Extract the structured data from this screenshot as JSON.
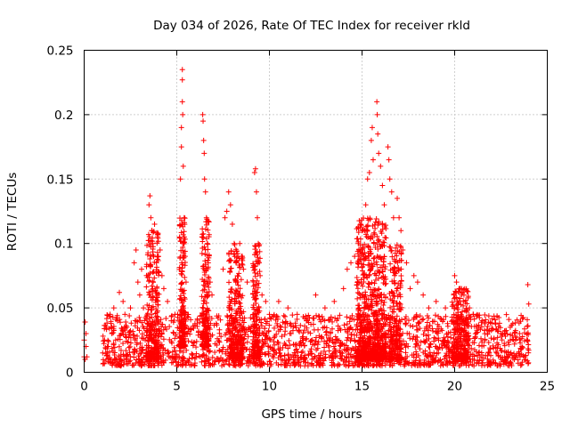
{
  "chart_data": {
    "type": "scatter",
    "title": "Day 034 of 2026, Rate Of TEC Index for receiver rkld",
    "xlabel": "GPS time / hours",
    "ylabel": "ROTI / TECUs",
    "xlim": [
      0,
      25
    ],
    "ylim": [
      0,
      0.25
    ],
    "x_ticks": [
      0,
      5,
      10,
      15,
      20,
      25
    ],
    "y_ticks": [
      0,
      0.05,
      0.1,
      0.15,
      0.2,
      0.25
    ],
    "x_tick_labels": [
      "0",
      "5",
      "10",
      "15",
      "20",
      "25"
    ],
    "y_tick_labels": [
      "0",
      "0.05",
      "0.1",
      "0.15",
      "0.2",
      "0.25"
    ],
    "grid": true,
    "marker": "+",
    "marker_color": "#ff0000",
    "series": [
      {
        "points": [
          [
            0.0,
            0.012
          ],
          [
            0.0,
            0.025
          ],
          [
            0.05,
            0.039
          ],
          [
            0.05,
            0.01
          ],
          [
            0.1,
            0.02
          ],
          [
            0.1,
            0.03
          ],
          [
            0.15,
            0.012
          ],
          [
            1.0,
            0.015
          ],
          [
            1.1,
            0.025
          ],
          [
            1.2,
            0.035
          ],
          [
            1.3,
            0.02
          ],
          [
            1.4,
            0.045
          ],
          [
            1.5,
            0.03
          ],
          [
            1.6,
            0.05
          ],
          [
            1.7,
            0.025
          ],
          [
            1.8,
            0.04
          ],
          [
            1.9,
            0.062
          ],
          [
            2.0,
            0.03
          ],
          [
            2.1,
            0.055
          ],
          [
            2.2,
            0.045
          ],
          [
            2.3,
            0.035
          ],
          [
            2.5,
            0.05
          ],
          [
            2.7,
            0.085
          ],
          [
            2.8,
            0.095
          ],
          [
            2.9,
            0.07
          ],
          [
            3.0,
            0.06
          ],
          [
            3.1,
            0.08
          ],
          [
            3.2,
            0.05
          ],
          [
            3.5,
            0.13
          ],
          [
            3.55,
            0.137
          ],
          [
            3.6,
            0.12
          ],
          [
            3.65,
            0.11
          ],
          [
            3.7,
            0.1
          ],
          [
            3.75,
            0.09
          ],
          [
            3.8,
            0.115
          ],
          [
            3.9,
            0.085
          ],
          [
            4.0,
            0.09
          ],
          [
            4.1,
            0.095
          ],
          [
            4.2,
            0.075
          ],
          [
            4.3,
            0.065
          ],
          [
            4.5,
            0.055
          ],
          [
            4.7,
            0.04
          ],
          [
            4.9,
            0.045
          ],
          [
            5.15,
            0.105
          ],
          [
            5.2,
            0.15
          ],
          [
            5.25,
            0.175
          ],
          [
            5.25,
            0.19
          ],
          [
            5.3,
            0.21
          ],
          [
            5.3,
            0.235
          ],
          [
            5.3,
            0.227
          ],
          [
            5.32,
            0.2
          ],
          [
            5.35,
            0.16
          ],
          [
            5.4,
            0.12
          ],
          [
            5.45,
            0.09
          ],
          [
            5.5,
            0.07
          ],
          [
            6.4,
            0.2
          ],
          [
            6.42,
            0.195
          ],
          [
            6.45,
            0.18
          ],
          [
            6.48,
            0.17
          ],
          [
            6.5,
            0.15
          ],
          [
            6.55,
            0.14
          ],
          [
            6.6,
            0.12
          ],
          [
            6.65,
            0.1
          ],
          [
            6.7,
            0.085
          ],
          [
            6.8,
            0.07
          ],
          [
            6.9,
            0.06
          ],
          [
            7.5,
            0.08
          ],
          [
            7.6,
            0.12
          ],
          [
            7.7,
            0.125
          ],
          [
            7.8,
            0.14
          ],
          [
            7.9,
            0.13
          ],
          [
            8.0,
            0.115
          ],
          [
            8.1,
            0.1
          ],
          [
            8.2,
            0.085
          ],
          [
            8.3,
            0.09
          ],
          [
            8.4,
            0.1
          ],
          [
            8.5,
            0.09
          ],
          [
            8.6,
            0.08
          ],
          [
            8.8,
            0.07
          ],
          [
            9.2,
            0.155
          ],
          [
            9.25,
            0.158
          ],
          [
            9.3,
            0.14
          ],
          [
            9.35,
            0.12
          ],
          [
            9.4,
            0.1
          ],
          [
            9.45,
            0.085
          ],
          [
            9.5,
            0.075
          ],
          [
            9.6,
            0.06
          ],
          [
            9.8,
            0.055
          ],
          [
            10.0,
            0.045
          ],
          [
            10.5,
            0.055
          ],
          [
            11.0,
            0.05
          ],
          [
            11.5,
            0.045
          ],
          [
            12.0,
            0.04
          ],
          [
            12.5,
            0.06
          ],
          [
            13.0,
            0.05
          ],
          [
            13.5,
            0.055
          ],
          [
            14.0,
            0.065
          ],
          [
            14.2,
            0.08
          ],
          [
            14.4,
            0.085
          ],
          [
            14.6,
            0.09
          ],
          [
            14.8,
            0.1
          ],
          [
            15.0,
            0.11
          ],
          [
            15.1,
            0.09
          ],
          [
            15.2,
            0.13
          ],
          [
            15.3,
            0.15
          ],
          [
            15.4,
            0.155
          ],
          [
            15.5,
            0.18
          ],
          [
            15.55,
            0.19
          ],
          [
            15.6,
            0.165
          ],
          [
            15.8,
            0.21
          ],
          [
            15.82,
            0.2
          ],
          [
            15.85,
            0.185
          ],
          [
            15.9,
            0.17
          ],
          [
            16.0,
            0.16
          ],
          [
            16.1,
            0.145
          ],
          [
            16.2,
            0.13
          ],
          [
            16.4,
            0.175
          ],
          [
            16.45,
            0.165
          ],
          [
            16.5,
            0.15
          ],
          [
            16.6,
            0.14
          ],
          [
            16.7,
            0.12
          ],
          [
            16.9,
            0.135
          ],
          [
            17.0,
            0.12
          ],
          [
            17.1,
            0.11
          ],
          [
            17.2,
            0.095
          ],
          [
            17.4,
            0.085
          ],
          [
            17.6,
            0.065
          ],
          [
            17.8,
            0.075
          ],
          [
            18.0,
            0.07
          ],
          [
            18.3,
            0.06
          ],
          [
            18.6,
            0.05
          ],
          [
            19.0,
            0.055
          ],
          [
            19.5,
            0.05
          ],
          [
            20.0,
            0.075
          ],
          [
            20.1,
            0.07
          ],
          [
            20.3,
            0.065
          ],
          [
            20.5,
            0.06
          ],
          [
            20.8,
            0.05
          ],
          [
            21.0,
            0.045
          ],
          [
            21.5,
            0.04
          ],
          [
            22.0,
            0.038
          ],
          [
            22.5,
            0.03
          ],
          [
            23.0,
            0.035
          ],
          [
            23.5,
            0.03
          ],
          [
            23.9,
            0.025
          ],
          [
            23.95,
            0.068
          ],
          [
            24.0,
            0.053
          ]
        ],
        "baseline": {
          "x_start": 1.0,
          "x_end": 24.0,
          "y_min": 0.005,
          "y_max": 0.045,
          "count": 1900
        },
        "bursts": [
          {
            "x": 3.7,
            "width": 0.7,
            "y_min": 0.01,
            "y_max": 0.11,
            "count": 260
          },
          {
            "x": 5.3,
            "width": 0.35,
            "y_min": 0.02,
            "y_max": 0.12,
            "count": 160
          },
          {
            "x": 6.55,
            "width": 0.4,
            "y_min": 0.02,
            "y_max": 0.12,
            "count": 200
          },
          {
            "x": 8.2,
            "width": 0.8,
            "y_min": 0.01,
            "y_max": 0.1,
            "count": 280
          },
          {
            "x": 9.3,
            "width": 0.4,
            "y_min": 0.01,
            "y_max": 0.1,
            "count": 170
          },
          {
            "x": 15.5,
            "width": 1.6,
            "y_min": 0.01,
            "y_max": 0.12,
            "count": 720
          },
          {
            "x": 16.8,
            "width": 0.7,
            "y_min": 0.01,
            "y_max": 0.1,
            "count": 220
          },
          {
            "x": 20.3,
            "width": 0.9,
            "y_min": 0.01,
            "y_max": 0.065,
            "count": 250
          }
        ]
      }
    ]
  }
}
